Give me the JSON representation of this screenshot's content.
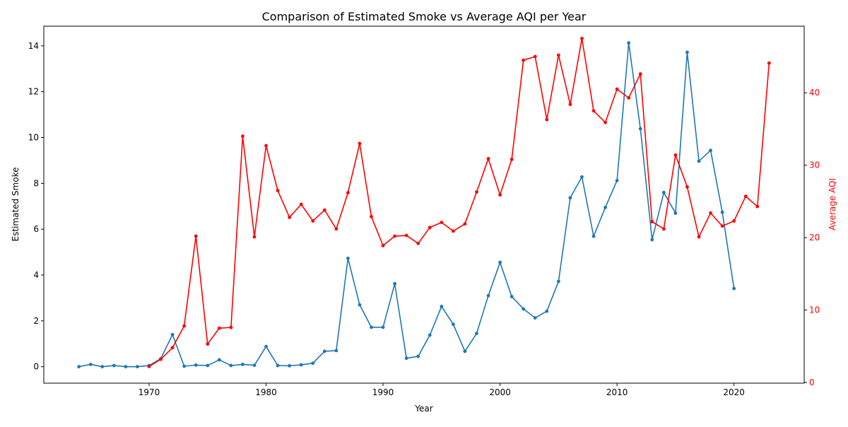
{
  "chart_data": {
    "type": "line",
    "title": "Comparison of Estimated Smoke vs Average AQI per Year",
    "xlabel": "Year",
    "ylabel_left": "Estimated Smoke",
    "ylabel_right": "Average AQI",
    "xlim": [
      1961,
      2026
    ],
    "ylim_left": [
      -0.72,
      14.86
    ],
    "ylim_right": [
      -0.1,
      49.2
    ],
    "x_ticks": [
      1970,
      1980,
      1990,
      2000,
      2010,
      2020
    ],
    "y_left_ticks": [
      0,
      2,
      4,
      6,
      8,
      10,
      12,
      14
    ],
    "y_right_ticks": [
      0,
      10,
      20,
      30,
      40
    ],
    "grid": false,
    "colors": {
      "smoke": "#1f77b4",
      "aqi": "#ff0000",
      "axis": "#000000"
    },
    "series": [
      {
        "axis": "left",
        "x": [
          1964,
          1965,
          1966,
          1967,
          1968,
          1969,
          1970,
          1971,
          1972,
          1973,
          1974,
          1975,
          1976,
          1977,
          1978,
          1979,
          1980,
          1981,
          1982,
          1983,
          1984,
          1985,
          1986,
          1987,
          1988,
          1989,
          1990,
          1991,
          1992,
          1993,
          1994,
          1995,
          1996,
          1997,
          1998,
          1999,
          2000,
          2001,
          2002,
          2003,
          2004,
          2005,
          2006,
          2007,
          2008,
          2009,
          2010,
          2011,
          2012,
          2013,
          2014,
          2015,
          2016,
          2017,
          2018,
          2019,
          2020
        ],
        "values": [
          0.0,
          0.1,
          0.0,
          0.05,
          0.0,
          0.0,
          0.05,
          0.35,
          1.4,
          0.02,
          0.07,
          0.05,
          0.3,
          0.05,
          0.1,
          0.06,
          0.88,
          0.05,
          0.04,
          0.08,
          0.15,
          0.67,
          0.7,
          4.73,
          2.7,
          1.72,
          1.72,
          3.62,
          0.37,
          0.45,
          1.38,
          2.63,
          1.85,
          0.67,
          1.45,
          3.1,
          4.55,
          3.06,
          2.52,
          2.13,
          2.42,
          3.72,
          7.37,
          8.28,
          5.69,
          6.95,
          8.12,
          14.13,
          10.38,
          5.54,
          7.6,
          6.7,
          13.72,
          8.97,
          9.44,
          6.74,
          3.41
        ]
      },
      {
        "axis": "right",
        "x": [
          1970,
          1971,
          1972,
          1973,
          1974,
          1975,
          1976,
          1977,
          1978,
          1979,
          1980,
          1981,
          1982,
          1983,
          1984,
          1985,
          1986,
          1987,
          1988,
          1989,
          1990,
          1991,
          1992,
          1993,
          1994,
          1995,
          1996,
          1997,
          1998,
          1999,
          2000,
          2001,
          2002,
          2003,
          2004,
          2005,
          2006,
          2007,
          2008,
          2009,
          2010,
          2011,
          2012,
          2013,
          2014,
          2015,
          2016,
          2017,
          2018,
          2019,
          2020,
          2021,
          2022,
          2023
        ],
        "values": [
          2.2,
          3.2,
          4.8,
          7.8,
          20.2,
          5.3,
          7.5,
          7.6,
          34.0,
          20.1,
          32.7,
          26.5,
          22.8,
          24.6,
          22.3,
          23.8,
          21.2,
          26.2,
          33.0,
          22.9,
          18.9,
          20.2,
          20.3,
          19.2,
          21.4,
          22.1,
          20.9,
          21.9,
          26.3,
          30.9,
          25.9,
          30.8,
          44.5,
          45.0,
          36.3,
          45.2,
          38.4,
          47.5,
          37.5,
          35.9,
          40.5,
          39.3,
          42.6,
          22.2,
          21.2,
          31.4,
          27.0,
          20.1,
          23.4,
          21.6,
          22.3,
          25.7,
          24.3,
          44.1
        ]
      }
    ]
  }
}
